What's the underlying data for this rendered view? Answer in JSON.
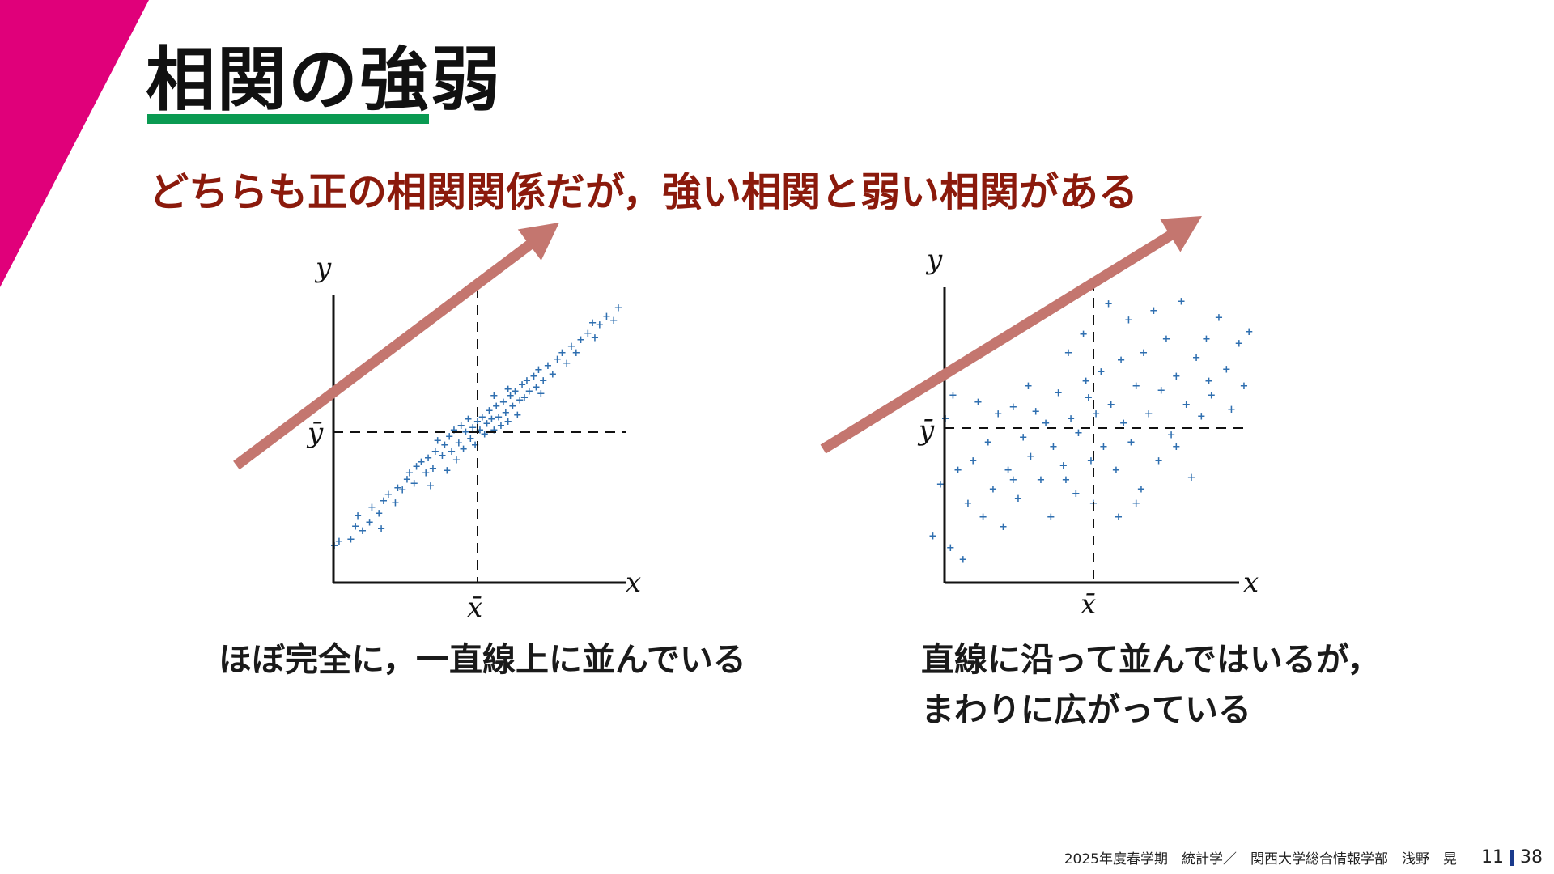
{
  "colors": {
    "corner": "#e0007a",
    "underline": "#0a9a52",
    "subtitle": "#8b1a0c",
    "arrow": "#c4766f",
    "point": "#2f6fb0",
    "footer_bar": "#1a3a8c"
  },
  "title": "相関の強弱",
  "subtitle": "どちらも正の相関関係だが，強い相関と弱い相関がある",
  "plots": [
    {
      "id": "strong",
      "axis_x": "x",
      "axis_y": "y",
      "mean_x": "x̄",
      "mean_y": "ȳ",
      "caption_lines": [
        "ほぼ完全に，一直線上に並んでいる"
      ]
    },
    {
      "id": "weak",
      "axis_x": "x",
      "axis_y": "y",
      "mean_x": "x̄",
      "mean_y": "ȳ",
      "caption_lines": [
        "直線に沿って並んではいるが，",
        "まわりに広がっている"
      ]
    }
  ],
  "footer": {
    "course": "2025年度春学期　統計学／　関西大学総合情報学部　浅野　晃",
    "page": "11",
    "total": "38"
  },
  "chart_data": [
    {
      "type": "scatter",
      "title": "",
      "xlabel": "x",
      "ylabel": "y",
      "mean_labels": [
        "x̄",
        "ȳ"
      ],
      "trend": "strong positive correlation",
      "xlim": [
        -3,
        3
      ],
      "ylim": [
        -3,
        3
      ],
      "points": [
        [
          -3.05,
          -2.65
        ],
        [
          -2.95,
          -2.55
        ],
        [
          -2.7,
          -2.5
        ],
        [
          -2.6,
          -2.2
        ],
        [
          -2.45,
          -2.3
        ],
        [
          -2.55,
          -1.95
        ],
        [
          -2.3,
          -2.1
        ],
        [
          -2.25,
          -1.75
        ],
        [
          -2.1,
          -1.9
        ],
        [
          -2.0,
          -1.6
        ],
        [
          -1.9,
          -1.45
        ],
        [
          -1.75,
          -1.65
        ],
        [
          -1.7,
          -1.3
        ],
        [
          -1.6,
          -1.35
        ],
        [
          -1.5,
          -1.1
        ],
        [
          -1.45,
          -0.95
        ],
        [
          -1.35,
          -1.2
        ],
        [
          -1.3,
          -0.8
        ],
        [
          -1.2,
          -0.7
        ],
        [
          -1.1,
          -0.95
        ],
        [
          -1.05,
          -0.6
        ],
        [
          -0.95,
          -0.85
        ],
        [
          -0.9,
          -0.45
        ],
        [
          -0.85,
          -0.2
        ],
        [
          -0.75,
          -0.55
        ],
        [
          -0.7,
          -0.3
        ],
        [
          -0.6,
          -0.1
        ],
        [
          -0.55,
          -0.45
        ],
        [
          -0.5,
          0.05
        ],
        [
          -0.4,
          -0.25
        ],
        [
          -0.35,
          0.15
        ],
        [
          -0.3,
          -0.4
        ],
        [
          -0.25,
          0.0
        ],
        [
          -0.2,
          0.3
        ],
        [
          -0.15,
          -0.15
        ],
        [
          -0.1,
          0.1
        ],
        [
          -0.05,
          -0.3
        ],
        [
          0.0,
          0.25
        ],
        [
          0.05,
          0.05
        ],
        [
          0.1,
          0.35
        ],
        [
          0.15,
          -0.05
        ],
        [
          0.2,
          0.2
        ],
        [
          0.25,
          0.5
        ],
        [
          0.3,
          0.3
        ],
        [
          0.35,
          0.05
        ],
        [
          0.4,
          0.6
        ],
        [
          0.45,
          0.35
        ],
        [
          0.5,
          0.15
        ],
        [
          0.55,
          0.7
        ],
        [
          0.6,
          0.45
        ],
        [
          0.65,
          0.25
        ],
        [
          0.7,
          0.85
        ],
        [
          0.75,
          0.6
        ],
        [
          0.8,
          0.95
        ],
        [
          0.85,
          0.4
        ],
        [
          0.9,
          0.75
        ],
        [
          0.95,
          1.1
        ],
        [
          1.0,
          0.8
        ],
        [
          1.05,
          1.2
        ],
        [
          1.1,
          0.95
        ],
        [
          1.2,
          1.3
        ],
        [
          1.25,
          1.05
        ],
        [
          1.3,
          1.45
        ],
        [
          1.4,
          1.2
        ],
        [
          1.5,
          1.55
        ],
        [
          1.6,
          1.35
        ],
        [
          1.7,
          1.7
        ],
        [
          1.8,
          1.85
        ],
        [
          1.9,
          1.6
        ],
        [
          2.0,
          2.0
        ],
        [
          2.1,
          1.85
        ],
        [
          2.2,
          2.15
        ],
        [
          2.35,
          2.3
        ],
        [
          2.5,
          2.2
        ],
        [
          2.6,
          2.5
        ],
        [
          2.75,
          2.7
        ],
        [
          2.9,
          2.6
        ],
        [
          3.0,
          2.9
        ],
        [
          -0.45,
          -0.65
        ],
        [
          0.35,
          0.85
        ],
        [
          -1.0,
          -1.25
        ],
        [
          1.35,
          0.9
        ],
        [
          -2.05,
          -2.25
        ],
        [
          2.45,
          2.55
        ],
        [
          -0.65,
          -0.9
        ],
        [
          0.65,
          1.0
        ]
      ]
    },
    {
      "type": "scatter",
      "title": "",
      "xlabel": "x",
      "ylabel": "y",
      "mean_labels": [
        "x̄",
        "ȳ"
      ],
      "trend": "weak positive correlation",
      "xlim": [
        -3,
        3
      ],
      "ylim": [
        -3,
        3
      ],
      "points": [
        [
          -3.2,
          -2.3
        ],
        [
          -3.05,
          -1.2
        ],
        [
          -2.95,
          0.2
        ],
        [
          -2.85,
          -2.55
        ],
        [
          -2.8,
          0.7
        ],
        [
          -2.7,
          -0.9
        ],
        [
          -2.6,
          -2.8
        ],
        [
          -2.5,
          -1.6
        ],
        [
          -2.4,
          -0.7
        ],
        [
          -2.3,
          0.55
        ],
        [
          -2.2,
          -1.9
        ],
        [
          -2.1,
          -0.3
        ],
        [
          -2.0,
          -1.3
        ],
        [
          -1.9,
          0.3
        ],
        [
          -1.8,
          -2.1
        ],
        [
          -1.7,
          -0.9
        ],
        [
          -1.6,
          0.45
        ],
        [
          -1.5,
          -1.5
        ],
        [
          -1.4,
          -0.2
        ],
        [
          -1.3,
          0.9
        ],
        [
          -1.25,
          -0.6
        ],
        [
          -1.15,
          0.35
        ],
        [
          -1.05,
          -1.1
        ],
        [
          -0.95,
          0.1
        ],
        [
          -0.85,
          -1.9
        ],
        [
          -0.8,
          -0.4
        ],
        [
          -0.7,
          0.75
        ],
        [
          -0.6,
          -0.8
        ],
        [
          -0.5,
          1.6
        ],
        [
          -0.45,
          0.2
        ],
        [
          -0.35,
          -1.4
        ],
        [
          -0.3,
          -0.1
        ],
        [
          -0.2,
          2.0
        ],
        [
          -0.1,
          0.65
        ],
        [
          -0.05,
          -0.7
        ],
        [
          0.0,
          -1.6
        ],
        [
          0.05,
          0.3
        ],
        [
          0.15,
          1.2
        ],
        [
          0.2,
          -0.4
        ],
        [
          0.3,
          2.65
        ],
        [
          0.35,
          0.5
        ],
        [
          0.45,
          -0.9
        ],
        [
          0.55,
          1.45
        ],
        [
          0.6,
          0.1
        ],
        [
          0.7,
          2.3
        ],
        [
          0.75,
          -0.3
        ],
        [
          0.85,
          0.9
        ],
        [
          0.95,
          -1.3
        ],
        [
          1.0,
          1.6
        ],
        [
          1.1,
          0.3
        ],
        [
          1.2,
          2.5
        ],
        [
          1.3,
          -0.7
        ],
        [
          1.35,
          0.8
        ],
        [
          1.45,
          1.9
        ],
        [
          1.55,
          -0.15
        ],
        [
          1.65,
          1.1
        ],
        [
          1.75,
          2.7
        ],
        [
          1.85,
          0.5
        ],
        [
          1.95,
          -1.05
        ],
        [
          2.05,
          1.5
        ],
        [
          2.15,
          0.25
        ],
        [
          2.25,
          1.9
        ],
        [
          2.35,
          0.7
        ],
        [
          2.5,
          2.35
        ],
        [
          2.65,
          1.25
        ],
        [
          2.75,
          0.4
        ],
        [
          2.9,
          1.8
        ],
        [
          3.0,
          0.9
        ],
        [
          3.1,
          2.05
        ],
        [
          -0.55,
          -1.1
        ],
        [
          0.85,
          -1.6
        ],
        [
          -1.6,
          -1.1
        ],
        [
          1.65,
          -0.4
        ],
        [
          -0.15,
          1.0
        ],
        [
          0.5,
          -1.9
        ],
        [
          2.3,
          1.0
        ]
      ]
    }
  ]
}
